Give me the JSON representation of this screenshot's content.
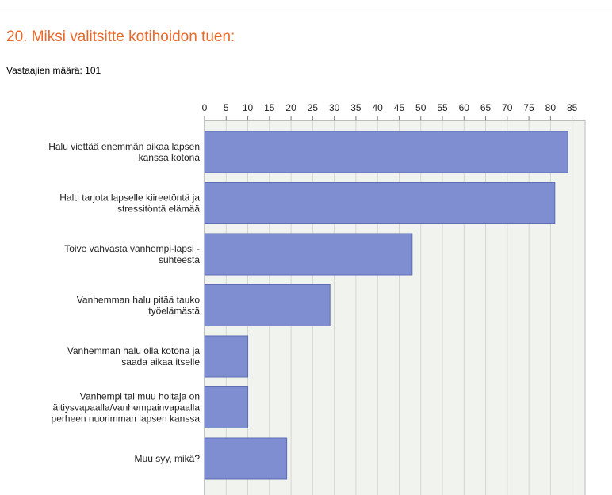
{
  "header": {
    "title": "20. Miksi valitsitte kotihoidon tuen:",
    "respondents": "Vastaajien määrä: 101"
  },
  "colors": {
    "title": "#e8692a",
    "bar_fill": "#7f8ed1",
    "bar_stroke": "#5f6db5",
    "plot_bg": "#f1f4ee",
    "grid": "#d4d7cf"
  },
  "chart_data": {
    "type": "bar",
    "orientation": "horizontal",
    "categories": [
      [
        "Halu viettää enemmän aikaa lapsen",
        "kanssa kotona"
      ],
      [
        "Halu tarjota lapselle kiireetöntä ja",
        "stressitöntä elämää"
      ],
      [
        "Toive vahvasta vanhempi-lapsi -",
        "suhteesta"
      ],
      [
        "Vanhemman halu pitää tauko",
        "työelämästä"
      ],
      [
        "Vanhemman halu olla kotona ja",
        "saada aikaa itselle"
      ],
      [
        "Vanhempi tai muu hoitaja on",
        "äitiysvapaalla/vanhempainvapaalla",
        "perheen nuorimman lapsen kanssa"
      ],
      [
        "Muu syy, mikä?"
      ]
    ],
    "values": [
      84,
      81,
      48,
      29,
      10,
      10,
      19
    ],
    "xlim": [
      0,
      88
    ],
    "xticks": [
      "0",
      "5",
      "10",
      "15",
      "20",
      "25",
      "30",
      "35",
      "40",
      "45",
      "50",
      "55",
      "60",
      "65",
      "70",
      "75",
      "80",
      "85"
    ],
    "xtick_values": [
      0,
      5,
      10,
      15,
      20,
      25,
      30,
      35,
      40,
      45,
      50,
      55,
      60,
      65,
      70,
      75,
      80,
      85
    ],
    "axis_position": "top",
    "grid": true
  }
}
